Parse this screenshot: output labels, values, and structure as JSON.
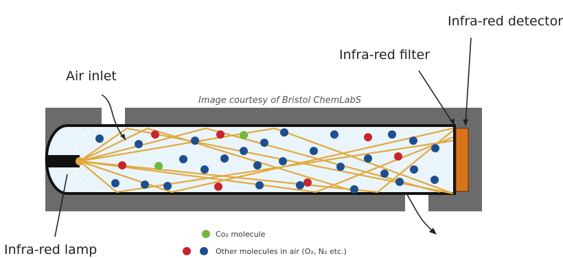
{
  "labels": {
    "ir_detector": "Infra-red detector",
    "ir_filter": "Infra-red filter",
    "air_inlet": "Air inlet",
    "ir_lamp": "Infra-red lamp",
    "credit": "Image courtesy of Bristol ChemLabS"
  },
  "legend": {
    "co2": "Co₂ molecule",
    "other": "Other molecules in air (O₂, N₂ etc.)"
  },
  "colors": {
    "housing": "#6b6b6b",
    "chamber": "#eaf4fb",
    "beam": "#e2a93a",
    "detector": "#d9731a",
    "co2": "#72b83d",
    "red_molecule": "#c8242c",
    "blue_molecule": "#1d4f8f"
  }
}
